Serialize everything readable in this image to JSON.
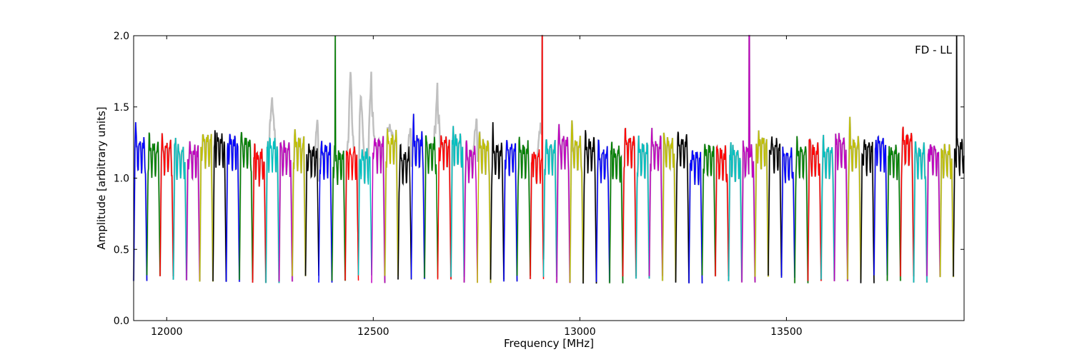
{
  "chart_data": {
    "type": "line",
    "xlabel": "Frequency [MHz]",
    "ylabel": "Amplitude [arbitrary units]",
    "annotation": "FD - LL",
    "annotation_position": "top-right",
    "xlim": [
      11920,
      13930
    ],
    "ylim": [
      0.0,
      2.0
    ],
    "x_ticks": [
      12000,
      12500,
      13000,
      13500
    ],
    "x_tick_labels": [
      "12000",
      "12500",
      "13000",
      "13500"
    ],
    "y_ticks": [
      0.0,
      0.5,
      1.0,
      1.5,
      2.0
    ],
    "y_tick_labels": [
      "0.0",
      "0.5",
      "1.0",
      "1.5",
      "2.0"
    ],
    "grid": false,
    "legend": "none",
    "background_series_color": "#c0c0c0",
    "palette": [
      "#0000ff",
      "#008000",
      "#ff0000",
      "#00bfbf",
      "#bf00bf",
      "#bfbf00",
      "#000000"
    ],
    "channel_start_mhz": 11920,
    "channel_spacing_mhz": 32,
    "peaks": [
      [
        12408,
        2.0,
        "#008000"
      ],
      [
        12909,
        2.0,
        "#00bfbf"
      ],
      [
        13410,
        2.0,
        "#bfbf00"
      ],
      [
        13912,
        2.0,
        "#0000ff"
      ]
    ],
    "background_excess": [
      [
        12255,
        1.58
      ],
      [
        12365,
        1.42
      ],
      [
        12445,
        1.76
      ],
      [
        12470,
        1.6
      ],
      [
        12495,
        1.78
      ],
      [
        12540,
        1.38
      ],
      [
        12590,
        1.38
      ],
      [
        12655,
        1.7
      ],
      [
        12750,
        1.45
      ],
      [
        12905,
        1.4
      ]
    ]
  }
}
